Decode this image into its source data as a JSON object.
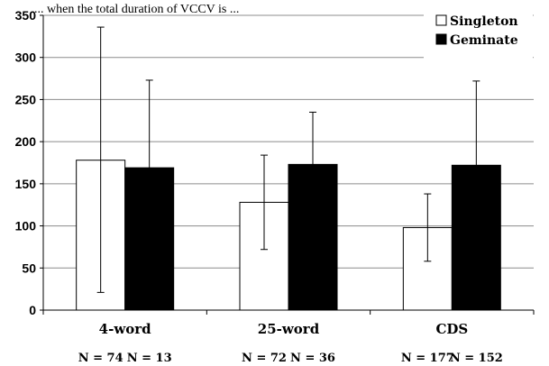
{
  "caption_fragment": "... when the total duration of VCCV is ...",
  "chart_data": {
    "type": "bar",
    "title": "",
    "xlabel": "",
    "ylabel": "",
    "ylim": [
      0,
      350
    ],
    "yticks": [
      0,
      50,
      100,
      150,
      200,
      250,
      300,
      350
    ],
    "grid": true,
    "legend_position": "top-right",
    "categories": [
      "4-word",
      "25-word",
      "CDS"
    ],
    "series": [
      {
        "name": "Singleton",
        "color": "#ffffff",
        "values": [
          178,
          128,
          98
        ],
        "error_upper": [
          336,
          184,
          138
        ],
        "error_lower": [
          21,
          72,
          58
        ],
        "n_labels": [
          "N = 74",
          "N = 72",
          "N = 177"
        ]
      },
      {
        "name": "Geminate",
        "color": "#000000",
        "values": [
          169,
          173,
          172
        ],
        "error_upper": [
          273,
          235,
          272
        ],
        "error_lower": [
          null,
          null,
          null
        ],
        "n_labels": [
          "N = 13",
          "N = 36",
          "N = 152"
        ]
      }
    ]
  }
}
